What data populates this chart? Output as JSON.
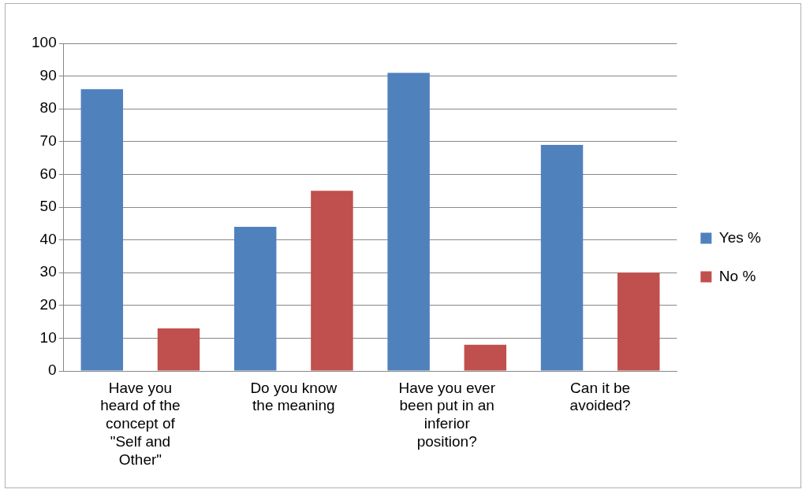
{
  "chart_data": {
    "type": "bar",
    "categories": [
      "Have you heard of the concept of \"Self and Other\"",
      "Do you know the meaning",
      "Have you ever been put in an inferior position?",
      "Can it be avoided?"
    ],
    "series": [
      {
        "name": "Yes %",
        "color": "#4f81bd",
        "values": [
          86,
          44,
          91,
          69
        ]
      },
      {
        "name": "No %",
        "color": "#c0504d",
        "values": [
          13,
          55,
          8,
          30
        ]
      }
    ],
    "ylim": [
      0,
      100
    ],
    "yticks": [
      0,
      10,
      20,
      30,
      40,
      50,
      60,
      70,
      80,
      90,
      100
    ],
    "grid": "y",
    "legend": "right"
  }
}
